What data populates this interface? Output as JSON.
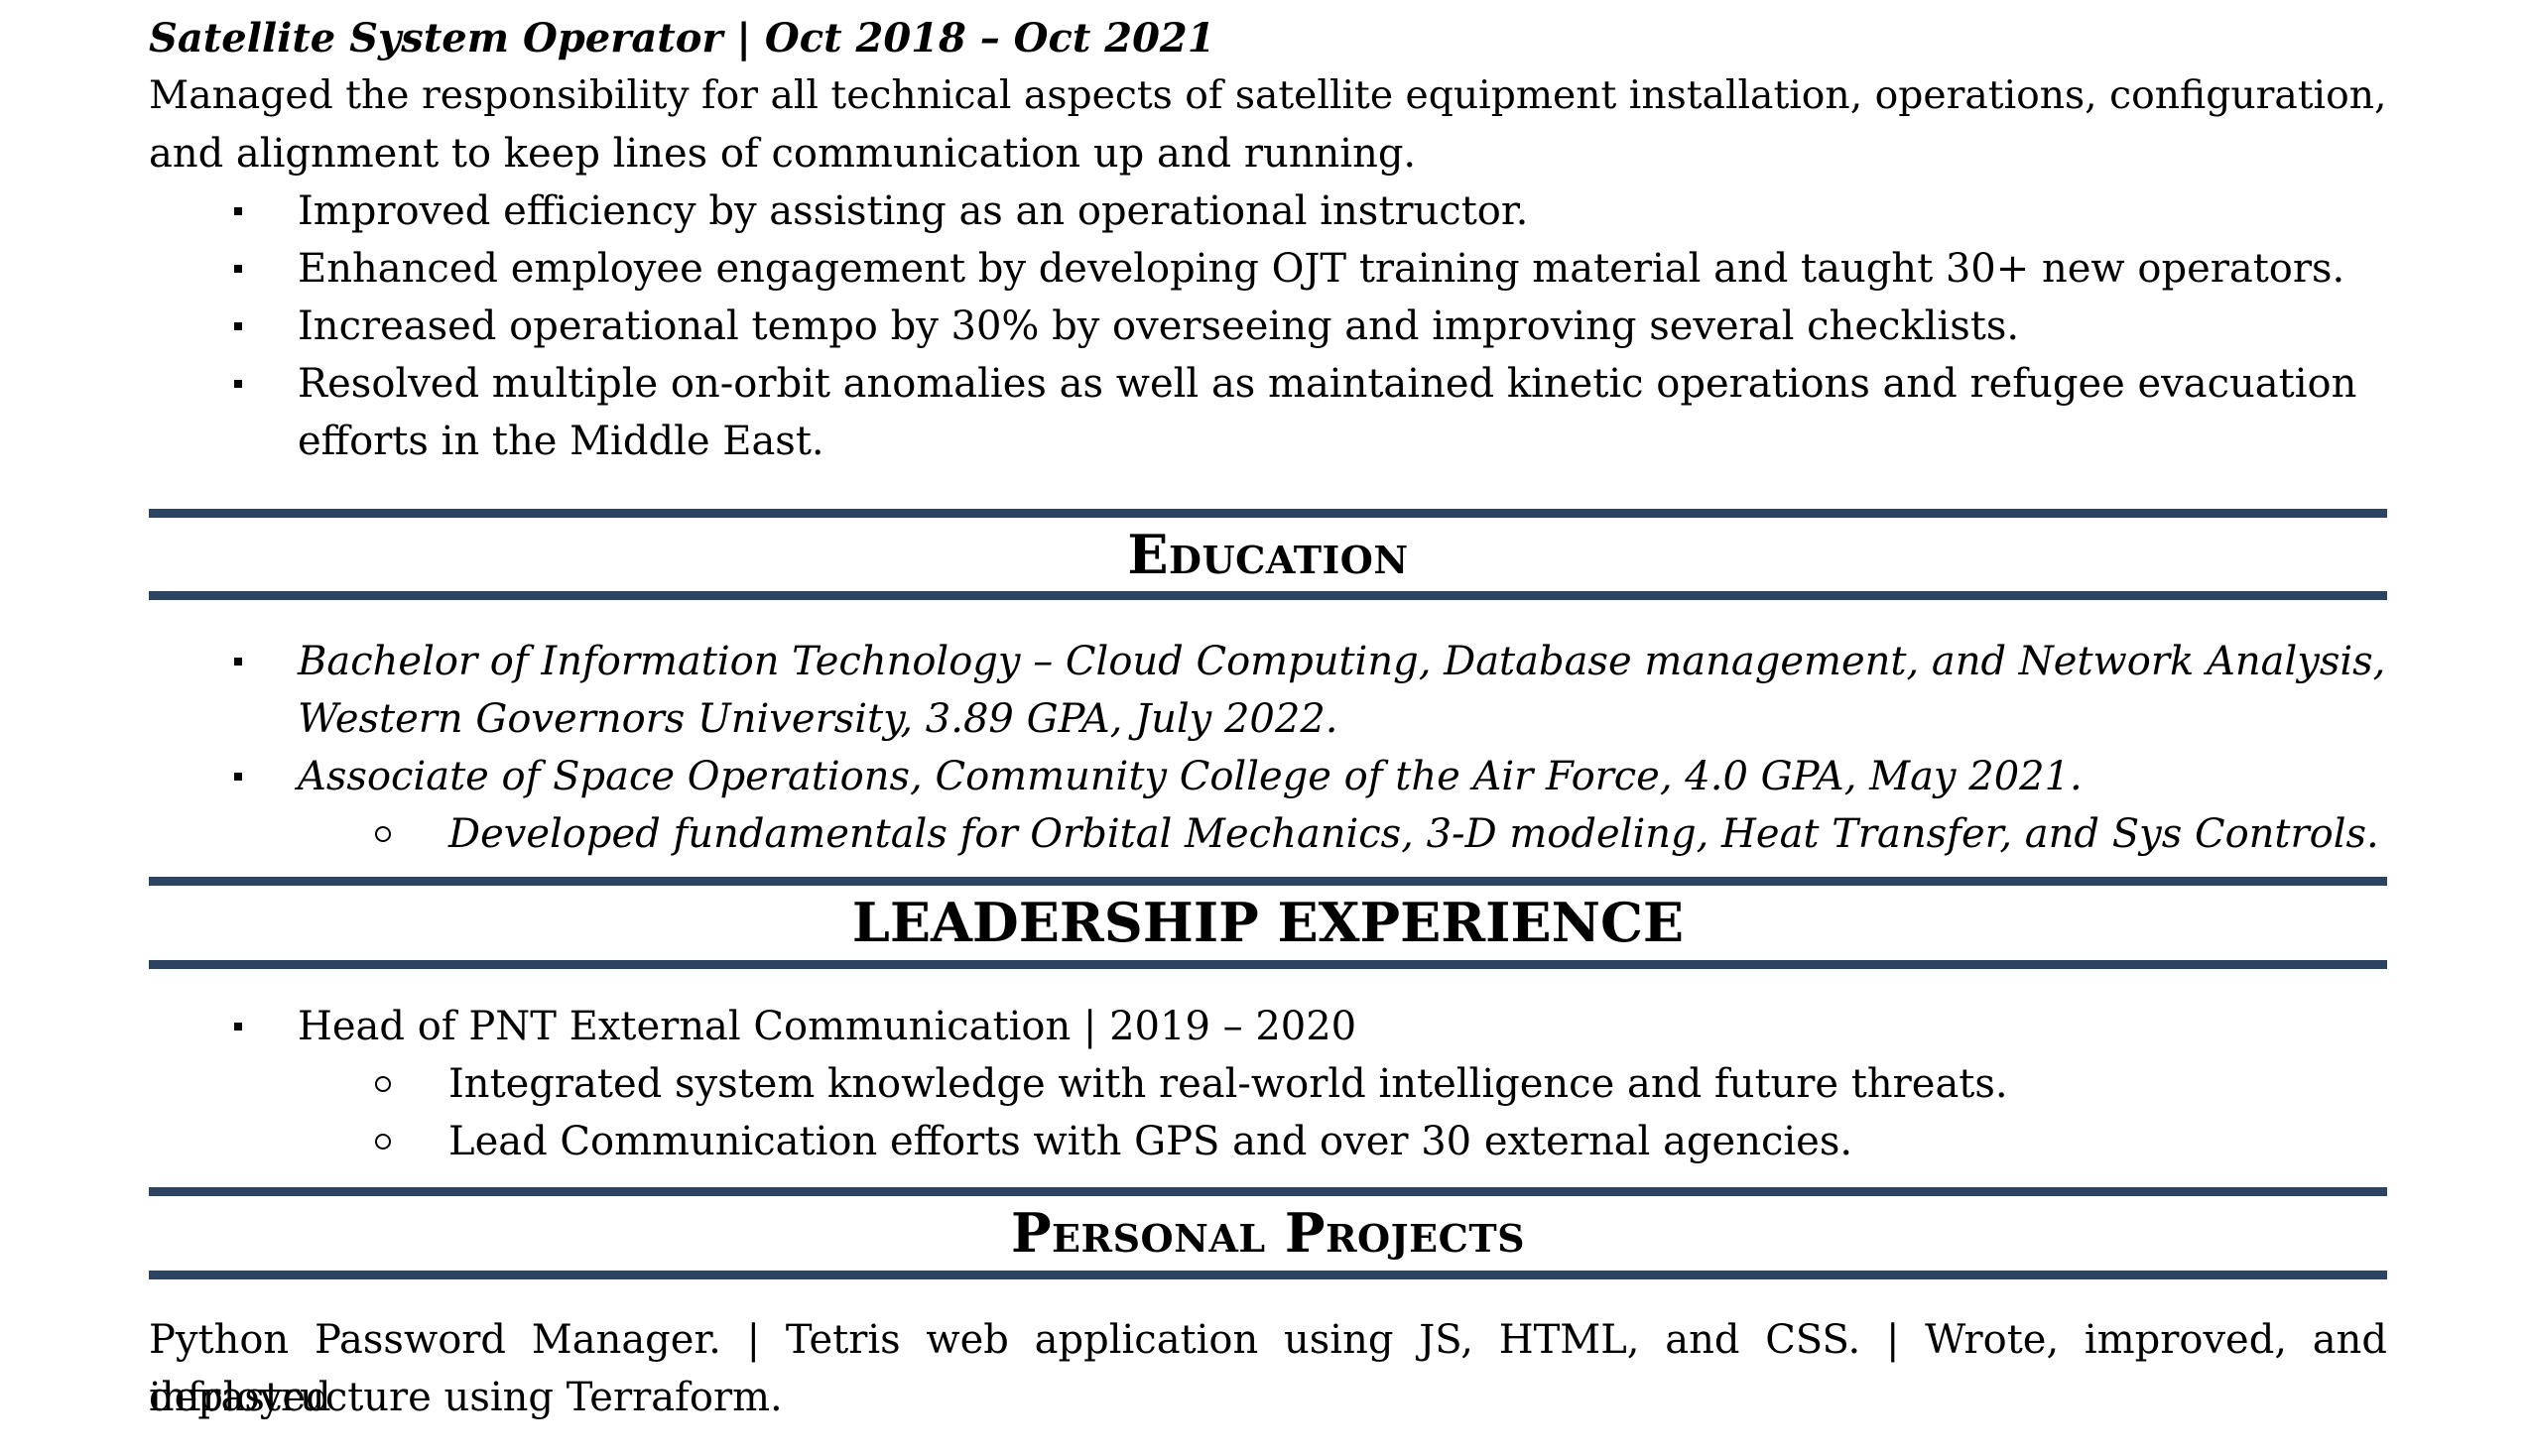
{
  "job": {
    "title": "Satellite System Operator | Oct 2018 – Oct 2021",
    "summary_line1": "Managed the responsibility for all technical aspects of satellite equipment installation, operations, configuration,",
    "summary_line2": "and alignment to keep lines of communication up and running.",
    "bullets": [
      {
        "line1": "Improved efficiency by assisting as an operational instructor."
      },
      {
        "line1": "Enhanced employee engagement by developing OJT training material and taught 30+ new operators."
      },
      {
        "line1": "Increased operational tempo by 30% by overseeing and improving several checklists."
      },
      {
        "line1": "Resolved multiple on-orbit anomalies as well as maintained kinetic operations and refugee evacuation",
        "line2": "efforts in the Middle East."
      }
    ]
  },
  "education": {
    "heading": "Education",
    "items": [
      {
        "line1": "Bachelor of Information Technology – Cloud Computing, Database management, and Network Analysis,",
        "line2": "Western Governors University, 3.89 GPA, July 2022."
      },
      {
        "line1": "Associate of Space Operations, Community College of the Air Force, 4.0 GPA, May 2021."
      }
    ],
    "sub_items": [
      "Developed fundamentals for Orbital Mechanics, 3-D modeling, Heat Transfer, and Sys Controls."
    ]
  },
  "leadership": {
    "heading": "LEADERSHIP EXPERIENCE",
    "items": [
      {
        "line1": "Head of PNT External Communication | 2019 – 2020"
      }
    ],
    "sub_items": [
      "Integrated system knowledge with real-world intelligence and future threats.",
      "Lead Communication efforts with GPS and over 30 external agencies."
    ]
  },
  "projects": {
    "heading": "Personal Projects",
    "line1": "Python Password Manager. | Tetris web application using JS, HTML, and CSS. | Wrote, improved, and deployed",
    "line2": "infrastructure using Terraform."
  },
  "colors": {
    "rule": "#2c4462",
    "text": "#000000",
    "background": "#ffffff"
  }
}
